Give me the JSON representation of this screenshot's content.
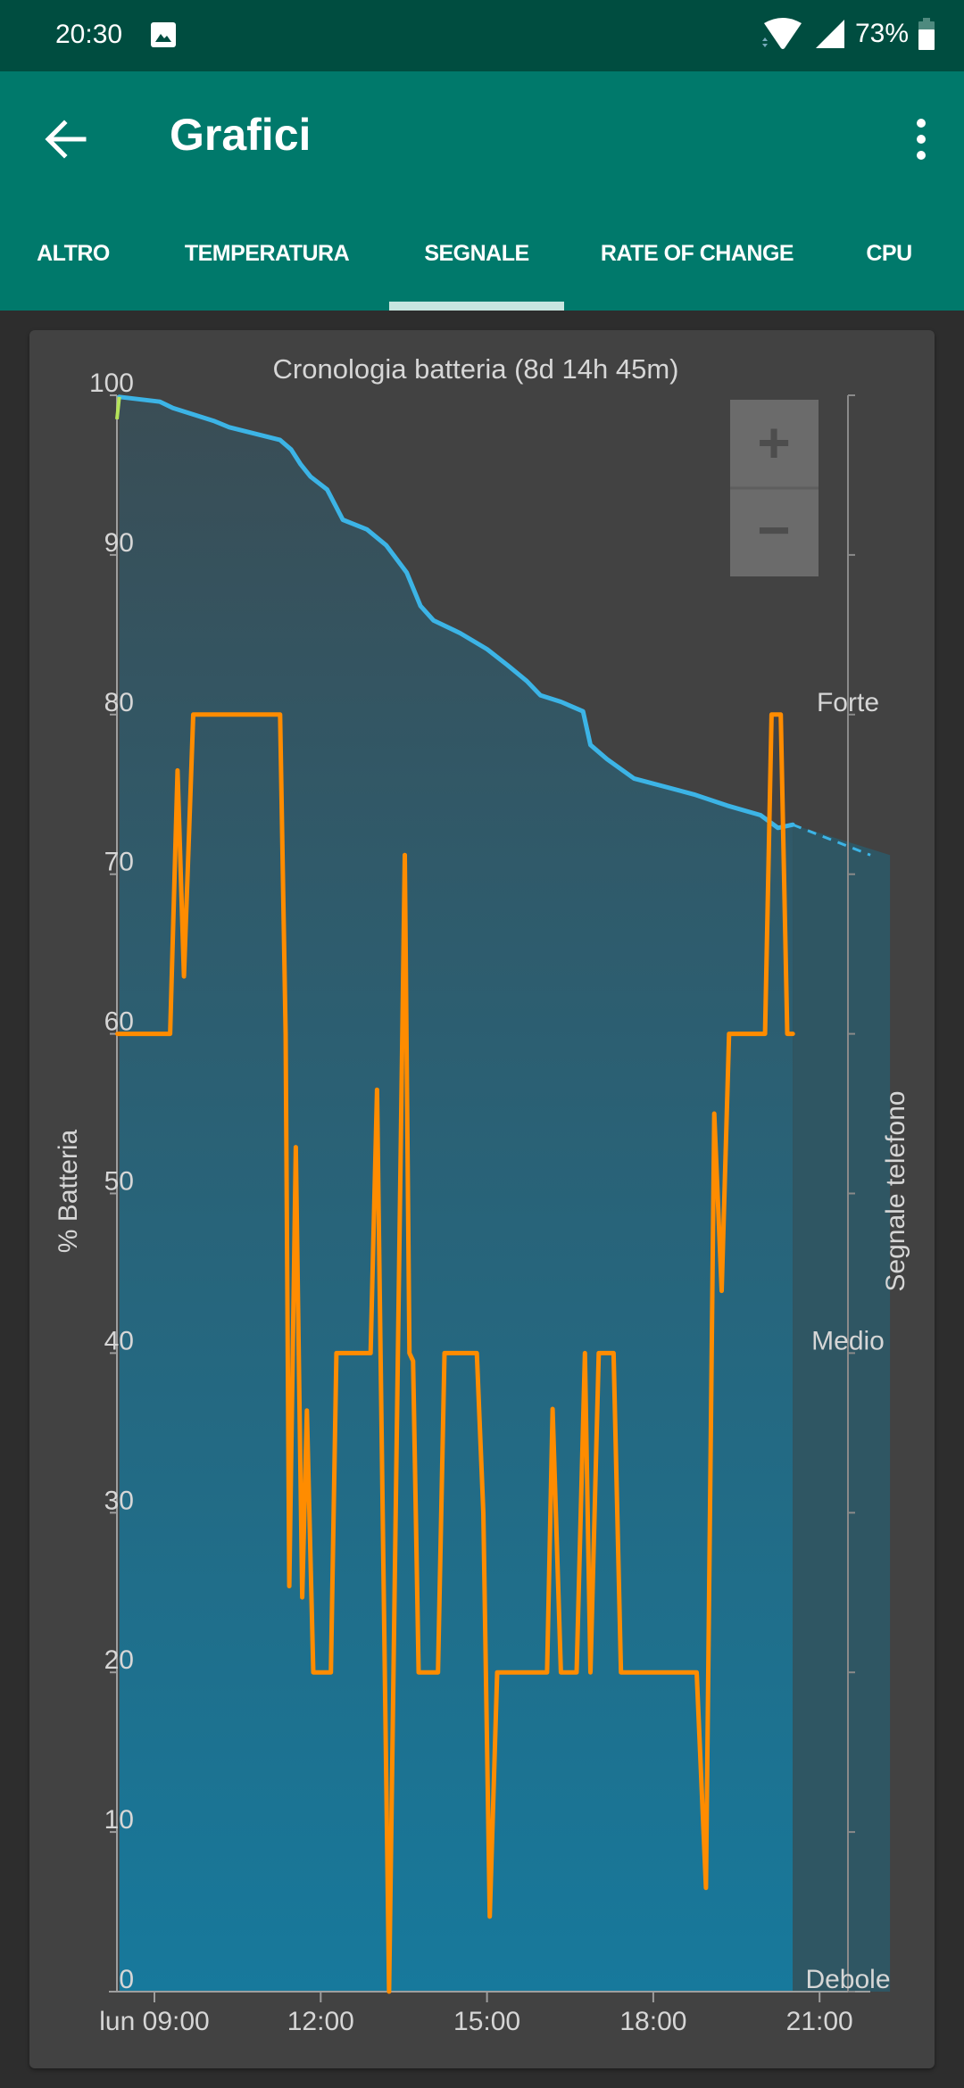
{
  "status_bar": {
    "time": "20:30",
    "battery_percent": "73%",
    "icons": [
      "image-icon",
      "wifi-icon",
      "cell-signal-icon",
      "battery-icon"
    ]
  },
  "app_bar": {
    "title": "Grafici",
    "back_icon": "arrow-back-icon",
    "menu_icon": "more-vert-icon"
  },
  "tabs": [
    {
      "label": "ALTRO",
      "selected": false
    },
    {
      "label": "TEMPERATURA",
      "selected": false
    },
    {
      "label": "SEGNALE",
      "selected": true
    },
    {
      "label": "RATE OF CHANGE",
      "selected": false
    },
    {
      "label": "CPU",
      "selected": false
    }
  ],
  "zoom_controls": {
    "zoom_in": "+",
    "zoom_out": "−"
  },
  "colors": {
    "status_bar": "#004d40",
    "app_bar": "#00796b",
    "tab_indicator": "#c8e6e0",
    "battery_line": "#3cb4e6",
    "signal_line": "#ff8c00",
    "charging_segment": "#b5e35a"
  },
  "chart_data": {
    "type": "line",
    "title": "Cronologia batteria (8d 14h 45m)",
    "ylabel": "% Batteria",
    "y2label": "Segnale telefono",
    "ylim": [
      0,
      100
    ],
    "xlim": [
      "08:20",
      "22:00"
    ],
    "yticks": [
      "0",
      "10",
      "20",
      "30",
      "40",
      "50",
      "60",
      "70",
      "80",
      "90",
      "100"
    ],
    "y2ticks": [
      {
        "label": "Debole",
        "at": 0
      },
      {
        "label": "Medio",
        "at": 40
      },
      {
        "label": "Forte",
        "at": 80
      }
    ],
    "xticks": [
      {
        "label": "lun 09:00",
        "t": "09:00"
      },
      {
        "label": "12:00",
        "t": "12:00"
      },
      {
        "label": "15:00",
        "t": "15:00"
      },
      {
        "label": "18:00",
        "t": "18:00"
      },
      {
        "label": "21:00",
        "t": "21:00"
      }
    ],
    "grid": false,
    "series": [
      {
        "key": "battery",
        "color": "#3cb4e6",
        "fill": true,
        "points": [
          [
            "08:22",
            99.9
          ],
          [
            "09:06",
            99.6
          ],
          [
            "09:20",
            99.2
          ],
          [
            "10:04",
            98.4
          ],
          [
            "10:21",
            98.0
          ],
          [
            "11:16",
            97.2
          ],
          [
            "11:28",
            96.6
          ],
          [
            "11:38",
            95.7
          ],
          [
            "11:49",
            94.9
          ],
          [
            "12:07",
            94.1
          ],
          [
            "12:24",
            92.2
          ],
          [
            "12:50",
            91.6
          ],
          [
            "13:11",
            90.6
          ],
          [
            "13:33",
            88.9
          ],
          [
            "13:48",
            86.8
          ],
          [
            "14:02",
            85.9
          ],
          [
            "14:31",
            85.1
          ],
          [
            "15:00",
            84.1
          ],
          [
            "15:22",
            83.1
          ],
          [
            "15:43",
            82.1
          ],
          [
            "15:58",
            81.2
          ],
          [
            "16:20",
            80.8
          ],
          [
            "16:44",
            80.2
          ],
          [
            "16:52",
            78.1
          ],
          [
            "17:10",
            77.2
          ],
          [
            "17:39",
            76.0
          ],
          [
            "18:44",
            75.0
          ],
          [
            "19:20",
            74.3
          ],
          [
            "19:56",
            73.7
          ],
          [
            "20:15",
            72.9
          ],
          [
            "20:31",
            73.1
          ]
        ],
        "projection": [
          [
            "20:31",
            73.1
          ],
          [
            "21:55",
            71.2
          ]
        ]
      },
      {
        "key": "signal",
        "color": "#ff8c00",
        "axis": "right",
        "points": [
          [
            "08:20",
            60
          ],
          [
            "09:17",
            60
          ],
          [
            "09:25",
            76.5
          ],
          [
            "09:32",
            63.6
          ],
          [
            "09:42",
            80
          ],
          [
            "11:16",
            80
          ],
          [
            "11:22",
            60
          ],
          [
            "11:26",
            25.4
          ],
          [
            "11:33",
            52.9
          ],
          [
            "11:40",
            24.7
          ],
          [
            "11:45",
            36.4
          ],
          [
            "11:52",
            20
          ],
          [
            "12:11",
            20
          ],
          [
            "12:17",
            40
          ],
          [
            "12:54",
            40
          ],
          [
            "13:01",
            56.5
          ],
          [
            "13:14",
            0
          ],
          [
            "13:31",
            71.2
          ],
          [
            "13:36",
            40
          ],
          [
            "13:40",
            39.5
          ],
          [
            "13:46",
            20
          ],
          [
            "14:07",
            20
          ],
          [
            "14:14",
            40
          ],
          [
            "14:49",
            40
          ],
          [
            "14:56",
            30
          ],
          [
            "15:03",
            4.7
          ],
          [
            "15:11",
            20
          ],
          [
            "16:05",
            20
          ],
          [
            "16:11",
            36.5
          ],
          [
            "16:20",
            20
          ],
          [
            "16:37",
            20
          ],
          [
            "16:46",
            40
          ],
          [
            "16:52",
            20
          ],
          [
            "17:01",
            40
          ],
          [
            "17:17",
            40
          ],
          [
            "17:25",
            20
          ],
          [
            "18:47",
            20
          ],
          [
            "18:57",
            6.5
          ],
          [
            "19:06",
            55
          ],
          [
            "19:14",
            43.9
          ],
          [
            "19:22",
            60
          ],
          [
            "20:01",
            60
          ],
          [
            "20:08",
            80
          ],
          [
            "20:18",
            80
          ],
          [
            "20:25",
            60
          ],
          [
            "20:31",
            60
          ]
        ]
      }
    ]
  }
}
